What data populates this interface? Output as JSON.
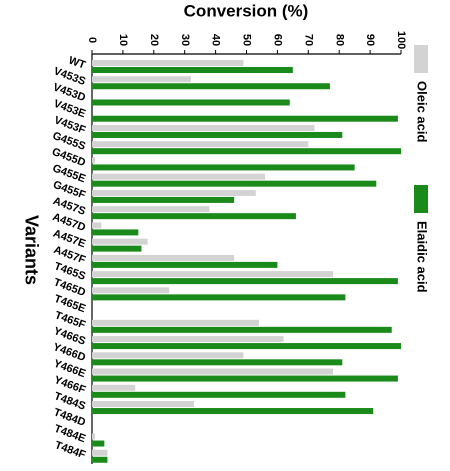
{
  "chart_data": {
    "type": "bar",
    "orientation": "horizontal",
    "title": "Conversion (%)",
    "y_label": "Variants",
    "categories": [
      "WT",
      "V453S",
      "V453D",
      "V453E",
      "V453F",
      "G455S",
      "G455D",
      "G455E",
      "G455F",
      "A457S",
      "A457D",
      "A457E",
      "A457F",
      "T465S",
      "T465D",
      "T465E",
      "T465F",
      "Y466S",
      "Y466D",
      "Y466E",
      "Y466F",
      "T484S",
      "T484D",
      "T484E",
      "T484F"
    ],
    "series": [
      {
        "name": "Oleic acid",
        "color": "#d3d3d3",
        "values": [
          49,
          32,
          0,
          0,
          72,
          70,
          1,
          56,
          53,
          38,
          3,
          18,
          46,
          78,
          25,
          0,
          54,
          62,
          49,
          78,
          14,
          33,
          0,
          1,
          5
        ]
      },
      {
        "name": "Elaidic acid",
        "color": "#1a8a1a",
        "values": [
          65,
          77,
          64,
          99,
          81,
          100,
          85,
          92,
          46,
          66,
          15,
          16,
          60,
          99,
          82,
          0,
          97,
          100,
          81,
          99,
          82,
          91,
          0,
          4,
          5
        ]
      }
    ],
    "xlim": [
      0,
      100
    ],
    "xticks": [
      0,
      10,
      20,
      30,
      40,
      50,
      60,
      70,
      80,
      90,
      100
    ],
    "legend": "right"
  }
}
